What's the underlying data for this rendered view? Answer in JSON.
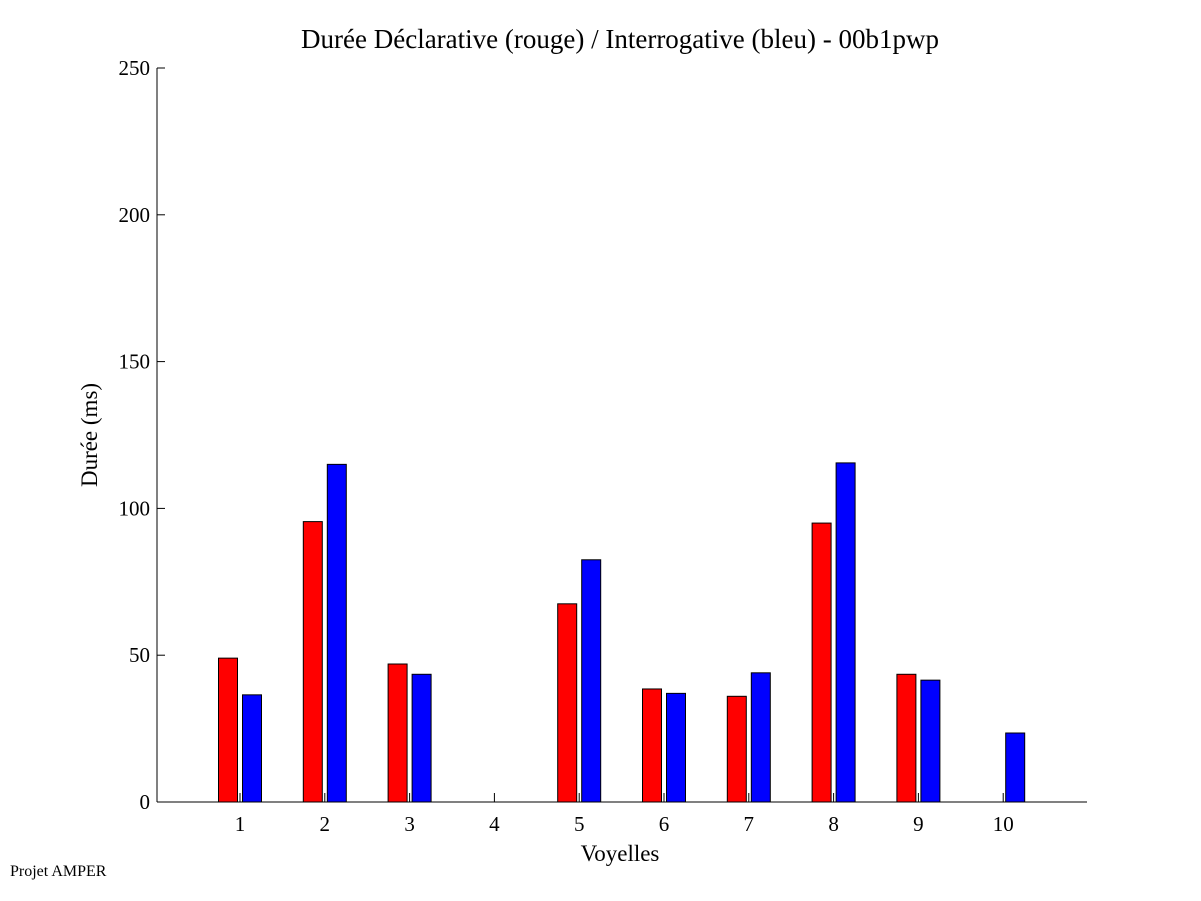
{
  "chart_data": {
    "type": "bar",
    "title": "Durée Déclarative (rouge) / Interrogative (bleu) - 00b1pwp",
    "xlabel": "Voyelles",
    "ylabel": "Durée (ms)",
    "ylim": [
      0,
      250
    ],
    "yticks": [
      "0",
      "50",
      "100",
      "150",
      "200",
      "250"
    ],
    "categories": [
      "1",
      "2",
      "3",
      "4",
      "5",
      "6",
      "7",
      "8",
      "9",
      "10"
    ],
    "series": [
      {
        "name": "Déclarative",
        "color": "#ff0000",
        "values": [
          49,
          95.5,
          47,
          0,
          67.5,
          38.5,
          36,
          95,
          43.5,
          0
        ]
      },
      {
        "name": "Interrogative",
        "color": "#0000ff",
        "values": [
          36.5,
          115,
          43.5,
          0,
          82.5,
          37,
          44,
          115.5,
          41.5,
          23.5
        ]
      }
    ],
    "grid": false,
    "legend": "none"
  },
  "footer": {
    "text": "Projet AMPER"
  }
}
